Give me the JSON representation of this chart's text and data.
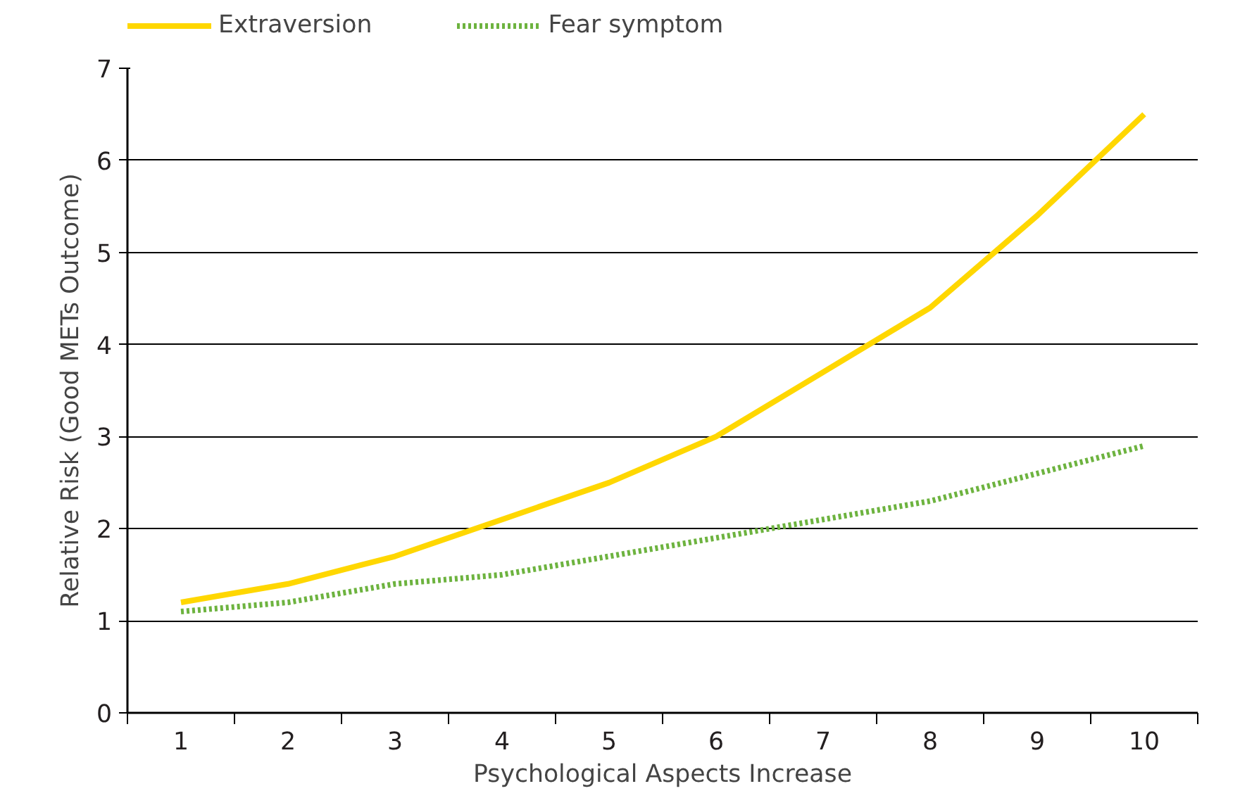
{
  "chart_data": {
    "type": "line",
    "xlabel": "Psychological Aspects Increase",
    "ylabel": "Relative Risk (Good METs Outcome)",
    "x": [
      1,
      2,
      3,
      4,
      5,
      6,
      7,
      8,
      9,
      10
    ],
    "series": [
      {
        "name": "Extraversion",
        "color": "#ffd700",
        "line_style": "solid",
        "values": [
          1.2,
          1.4,
          1.7,
          2.1,
          2.5,
          3.0,
          3.7,
          4.4,
          5.4,
          6.5
        ]
      },
      {
        "name": "Fear symptom",
        "color": "#6db33f",
        "line_style": "dotted",
        "values": [
          1.1,
          1.2,
          1.4,
          1.5,
          1.7,
          1.9,
          2.1,
          2.3,
          2.6,
          2.9
        ]
      }
    ],
    "xlim": [
      0.5,
      10.5
    ],
    "xticks": [
      1,
      2,
      3,
      4,
      5,
      6,
      7,
      8,
      9,
      10
    ],
    "ylim": [
      0,
      7
    ],
    "yticks": [
      0,
      1,
      2,
      3,
      4,
      5,
      6,
      7
    ],
    "grid": "y",
    "legend": "top",
    "marker": "none"
  }
}
